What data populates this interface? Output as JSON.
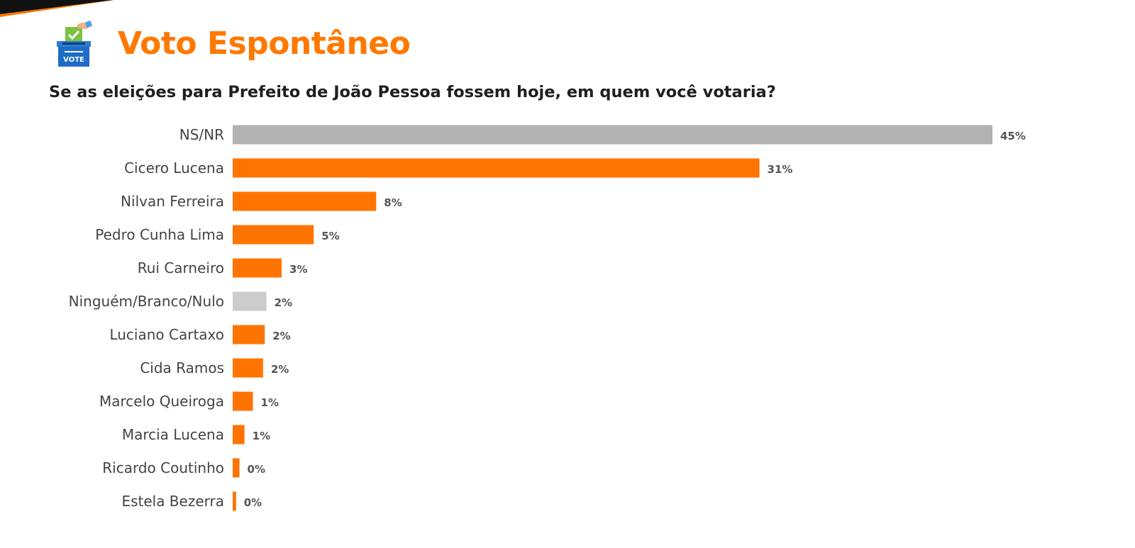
{
  "header": {
    "title": "Voto Espontâneo",
    "question": "Se as eleições para Prefeito de João Pessoa fossem hoje, em quem você votaria?",
    "icon": "ballot-box-vote-icon",
    "icon_text": "VOTE"
  },
  "colors": {
    "accent": "#ff7800",
    "bar_candidate": "#ff7400",
    "bar_nsnr": "#b2b2b2",
    "bar_null": "#cccccc",
    "title_dark": "#1e1e1e"
  },
  "chart_data": {
    "type": "bar",
    "orientation": "horizontal",
    "title": "",
    "xlabel": "",
    "ylabel": "",
    "xlim": [
      0,
      45
    ],
    "grid": false,
    "legend": "none",
    "categories": [
      "NS/NR",
      "Cicero Lucena",
      "Nilvan Ferreira",
      "Pedro Cunha Lima",
      "Rui Carneiro",
      "Ninguém/Branco/Nulo",
      "Luciano Cartaxo",
      "Cida Ramos",
      "Marcelo Queiroga",
      "Marcia Lucena",
      "Ricardo Coutinho",
      "Estela Bezerra"
    ],
    "values": [
      45,
      31.2,
      8.5,
      4.8,
      2.9,
      2.0,
      1.9,
      1.8,
      1.2,
      0.7,
      0.4,
      0.2
    ],
    "value_labels": [
      "45%",
      "31%",
      "8%",
      "5%",
      "3%",
      "2%",
      "2%",
      "2%",
      "1%",
      "1%",
      "0%",
      "0%"
    ],
    "bar_colors": [
      "#b2b2b2",
      "#ff7400",
      "#ff7400",
      "#ff7400",
      "#ff7400",
      "#cccccc",
      "#ff7400",
      "#ff7400",
      "#ff7400",
      "#ff7400",
      "#ff7400",
      "#ff7400"
    ]
  }
}
